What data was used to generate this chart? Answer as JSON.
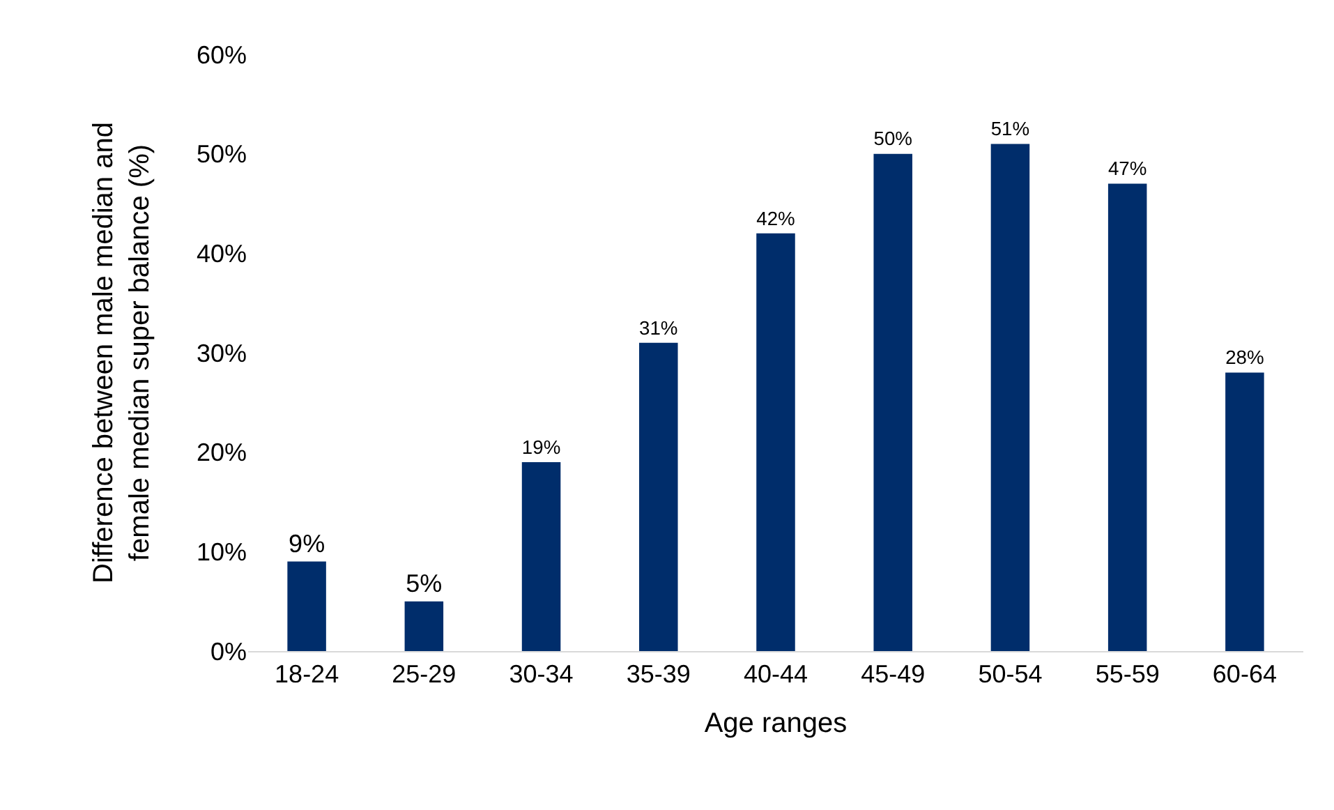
{
  "chart_data": {
    "type": "bar",
    "xlabel": "Age ranges",
    "ylabel": "Difference between male median and\nfemale median super balance (%)",
    "categories": [
      "18-24",
      "25-29",
      "30-34",
      "35-39",
      "40-44",
      "45-49",
      "50-54",
      "55-59",
      "60-64"
    ],
    "values": [
      9,
      5,
      19,
      31,
      42,
      50,
      51,
      47,
      28
    ],
    "value_labels": [
      "9%",
      "5%",
      "19%",
      "31%",
      "42%",
      "50%",
      "51%",
      "47%",
      "28%"
    ],
    "color": "#002d6b",
    "ylim": [
      0,
      60
    ],
    "yticks": [
      {
        "value": 0,
        "label": "0%"
      },
      {
        "value": 10,
        "label": "10%"
      },
      {
        "value": 20,
        "label": "20%"
      },
      {
        "value": 30,
        "label": "30%"
      },
      {
        "value": 40,
        "label": "40%"
      },
      {
        "value": 50,
        "label": "50%"
      },
      {
        "value": 60,
        "label": "60%"
      }
    ],
    "grid": false,
    "legend": false
  }
}
